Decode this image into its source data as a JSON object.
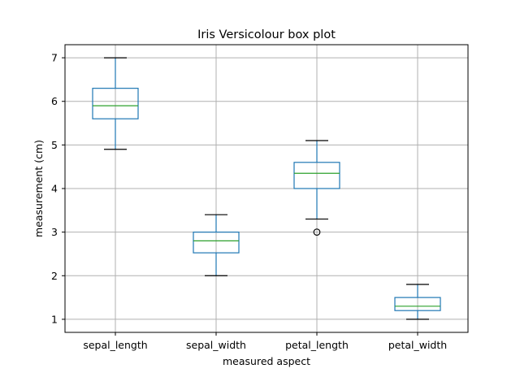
{
  "chart_data": {
    "type": "boxplot",
    "title": "Iris Versicolour box plot",
    "xlabel": "measured aspect",
    "ylabel": "measurement (cm)",
    "ylim": [
      0.7,
      7.3
    ],
    "yticks": [
      1,
      2,
      3,
      4,
      5,
      6,
      7
    ],
    "grid": true,
    "categories": [
      "sepal_length",
      "sepal_width",
      "petal_length",
      "petal_width"
    ],
    "boxes": [
      {
        "whisker_low": 4.9,
        "q1": 5.6,
        "median": 5.9,
        "q3": 6.3,
        "whisker_high": 7.0,
        "outliers": []
      },
      {
        "whisker_low": 2.0,
        "q1": 2.525,
        "median": 2.8,
        "q3": 3.0,
        "whisker_high": 3.4,
        "outliers": []
      },
      {
        "whisker_low": 3.3,
        "q1": 4.0,
        "median": 4.35,
        "q3": 4.6,
        "whisker_high": 5.1,
        "outliers": [
          3.0
        ]
      },
      {
        "whisker_low": 1.0,
        "q1": 1.2,
        "median": 1.3,
        "q3": 1.5,
        "whisker_high": 1.8,
        "outliers": []
      }
    ],
    "colors": {
      "box": "#1f77b4",
      "median": "#2ca02c",
      "whisker_cap": "#000000",
      "grid": "#b0b0b0",
      "outlier": "#000000"
    }
  }
}
